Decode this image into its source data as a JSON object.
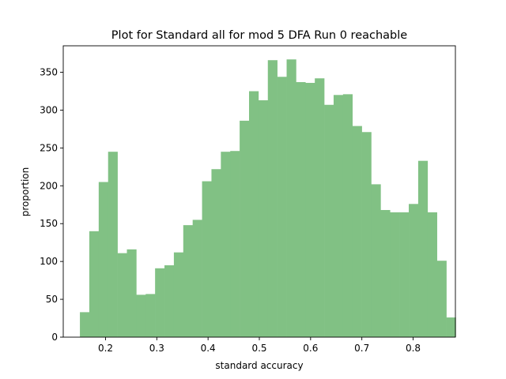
{
  "chart_data": {
    "type": "bar",
    "title": "Plot for Standard all for  mod 5  DFA Run 0  reachable",
    "xlabel": "standard accuracy",
    "ylabel": "proportion",
    "xlim": [
      0.1175,
      0.8825
    ],
    "ylim": [
      0,
      385
    ],
    "xticks": [
      0.2,
      0.3,
      0.4,
      0.5,
      0.6,
      0.7,
      0.8
    ],
    "xtick_labels": [
      "0.2",
      "0.3",
      "0.4",
      "0.5",
      "0.6",
      "0.7",
      "0.8"
    ],
    "yticks": [
      0,
      50,
      100,
      150,
      200,
      250,
      300,
      350
    ],
    "ytick_labels": [
      "0",
      "50",
      "100",
      "150",
      "200",
      "250",
      "300",
      "350"
    ],
    "grid": false,
    "bar_color": "#81c184",
    "bin_start": 0.15,
    "bin_width": 0.01833,
    "values": [
      33,
      140,
      205,
      245,
      111,
      116,
      56,
      57,
      91,
      95,
      112,
      148,
      155,
      206,
      222,
      245,
      246,
      286,
      325,
      313,
      366,
      344,
      367,
      337,
      336,
      342,
      307,
      320,
      321,
      279,
      271,
      202,
      168,
      165,
      165,
      176,
      233,
      165,
      101,
      26
    ]
  }
}
